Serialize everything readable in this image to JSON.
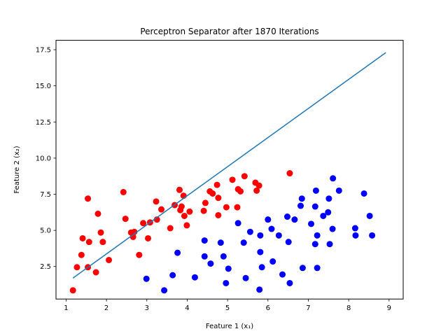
{
  "chart_data": {
    "type": "scatter",
    "title": "Perceptron Separator after 1870 Iterations",
    "xlabel": "Feature 1 (x₁)",
    "ylabel": "Feature 2 (x₂)",
    "xlim": [
      0.75,
      9.35
    ],
    "ylim": [
      0.25,
      18.15
    ],
    "xticks": [
      1,
      2,
      3,
      4,
      5,
      6,
      7,
      8,
      9
    ],
    "xtick_labels": [
      "1",
      "2",
      "3",
      "4",
      "5",
      "6",
      "7",
      "8",
      "9"
    ],
    "yticks": [
      2.5,
      5.0,
      7.5,
      10.0,
      12.5,
      15.0,
      17.5
    ],
    "ytick_labels": [
      "2.5",
      "5.0",
      "7.5",
      "10.0",
      "12.5",
      "15.0",
      "17.5"
    ],
    "grid": false,
    "colors": {
      "class_red": "#ff0000",
      "class_blue": "#0000ff",
      "line": "#1f77b4"
    },
    "line": {
      "x": [
        1.17,
        8.92
      ],
      "y": [
        1.7,
        17.3
      ]
    },
    "series": [
      {
        "color": "red",
        "points": [
          [
            1.17,
            0.85
          ],
          [
            1.27,
            2.45
          ],
          [
            1.38,
            3.3
          ],
          [
            1.41,
            4.45
          ],
          [
            1.54,
            2.45
          ],
          [
            1.57,
            4.2
          ],
          [
            1.54,
            7.2
          ],
          [
            1.74,
            2.1
          ],
          [
            1.79,
            6.15
          ],
          [
            1.86,
            4.85
          ],
          [
            1.91,
            4.2
          ],
          [
            2.06,
            2.95
          ],
          [
            2.42,
            7.65
          ],
          [
            2.47,
            5.8
          ],
          [
            2.61,
            4.85
          ],
          [
            2.66,
            4.55
          ],
          [
            2.69,
            4.9
          ],
          [
            2.81,
            3.3
          ],
          [
            2.91,
            5.5
          ],
          [
            3.03,
            4.45
          ],
          [
            3.08,
            5.55
          ],
          [
            3.25,
            5.75
          ],
          [
            3.23,
            7.0
          ],
          [
            3.36,
            6.45
          ],
          [
            3.58,
            5.15
          ],
          [
            3.69,
            6.75
          ],
          [
            3.81,
            7.8
          ],
          [
            3.83,
            6.4
          ],
          [
            3.86,
            6.65
          ],
          [
            3.91,
            7.4
          ],
          [
            3.93,
            6.0
          ],
          [
            3.99,
            5.35
          ],
          [
            4.06,
            6.3
          ],
          [
            4.41,
            6.35
          ],
          [
            4.45,
            6.9
          ],
          [
            4.56,
            7.7
          ],
          [
            4.63,
            7.55
          ],
          [
            4.74,
            8.15
          ],
          [
            4.77,
            6.05
          ],
          [
            4.77,
            7.25
          ],
          [
            4.97,
            6.6
          ],
          [
            5.12,
            8.5
          ],
          [
            5.24,
            6.6
          ],
          [
            5.26,
            7.85
          ],
          [
            5.32,
            7.7
          ],
          [
            5.42,
            8.75
          ],
          [
            5.69,
            8.3
          ],
          [
            5.72,
            7.75
          ],
          [
            5.78,
            8.1
          ],
          [
            6.54,
            8.95
          ]
        ]
      },
      {
        "color": "blue",
        "points": [
          [
            2.99,
            1.65
          ],
          [
            3.43,
            0.85
          ],
          [
            3.64,
            1.9
          ],
          [
            3.76,
            3.45
          ],
          [
            4.19,
            1.75
          ],
          [
            4.43,
            4.3
          ],
          [
            4.43,
            3.2
          ],
          [
            4.58,
            2.7
          ],
          [
            4.83,
            4.15
          ],
          [
            4.9,
            3.2
          ],
          [
            4.96,
            1.35
          ],
          [
            5.02,
            2.35
          ],
          [
            5.26,
            5.5
          ],
          [
            5.4,
            4.15
          ],
          [
            5.45,
            1.7
          ],
          [
            5.56,
            4.9
          ],
          [
            5.79,
            0.9
          ],
          [
            5.81,
            3.5
          ],
          [
            5.81,
            4.65
          ],
          [
            5.85,
            2.45
          ],
          [
            6.0,
            5.75
          ],
          [
            6.09,
            5.1
          ],
          [
            6.12,
            2.85
          ],
          [
            6.27,
            4.65
          ],
          [
            6.36,
            1.95
          ],
          [
            6.48,
            5.95
          ],
          [
            6.51,
            4.2
          ],
          [
            6.54,
            1.35
          ],
          [
            6.66,
            5.75
          ],
          [
            6.81,
            6.7
          ],
          [
            6.84,
            7.2
          ],
          [
            6.86,
            2.4
          ],
          [
            7.07,
            5.45
          ],
          [
            7.17,
            4.05
          ],
          [
            7.17,
            6.65
          ],
          [
            7.19,
            7.75
          ],
          [
            7.22,
            4.65
          ],
          [
            7.22,
            2.4
          ],
          [
            7.37,
            6.0
          ],
          [
            7.49,
            6.25
          ],
          [
            7.51,
            7.2
          ],
          [
            7.53,
            4.05
          ],
          [
            7.6,
            5.1
          ],
          [
            7.61,
            8.6
          ],
          [
            7.76,
            7.75
          ],
          [
            8.16,
            5.15
          ],
          [
            8.17,
            4.65
          ],
          [
            8.38,
            7.55
          ],
          [
            8.52,
            6.0
          ],
          [
            8.58,
            4.65
          ]
        ]
      }
    ]
  }
}
